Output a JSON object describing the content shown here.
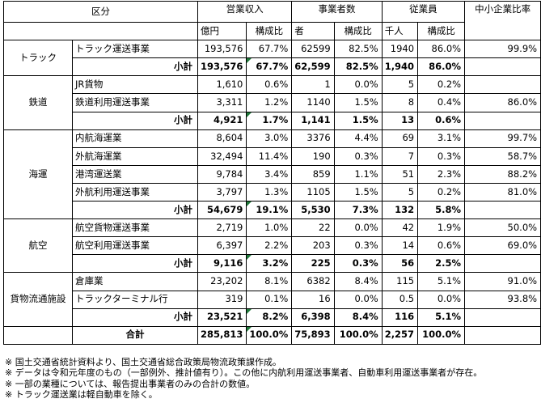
{
  "header": {
    "category": "区分",
    "revenue": "営業収入",
    "businesses": "事業者数",
    "employees": "従業員",
    "sme_ratio": "中小企業比率",
    "unit_revenue": "億円",
    "unit_businesses": "者",
    "unit_employees": "千人",
    "share": "構成比"
  },
  "groups": {
    "truck": {
      "label": "トラック",
      "rows": [
        {
          "name": "トラック運送事業",
          "rev": "193,576",
          "rev_share": "67.7%",
          "biz": "62599",
          "biz_share": "82.5%",
          "emp": "1940",
          "emp_share": "86.0%",
          "sme": "99.9%"
        }
      ],
      "subtotal": {
        "label": "小計",
        "rev": "193,576",
        "rev_share": "67.7%",
        "biz": "62,599",
        "biz_share": "82.5%",
        "emp": "1,940",
        "emp_share": "86.0%",
        "sme": ""
      }
    },
    "rail": {
      "label": "鉄道",
      "rows": [
        {
          "name": "JR貨物",
          "rev": "1,610",
          "rev_share": "0.6%",
          "biz": "1",
          "biz_share": "0.0%",
          "emp": "5",
          "emp_share": "0.2%",
          "sme": ""
        },
        {
          "name": "鉄道利用運送事業",
          "rev": "3,311",
          "rev_share": "1.2%",
          "biz": "1140",
          "biz_share": "1.5%",
          "emp": "8",
          "emp_share": "0.4%",
          "sme": "86.0%"
        }
      ],
      "subtotal": {
        "label": "小計",
        "rev": "4,921",
        "rev_share": "1.7%",
        "biz": "1,141",
        "biz_share": "1.5%",
        "emp": "13",
        "emp_share": "0.6%",
        "sme": ""
      }
    },
    "marine": {
      "label": "海運",
      "rows": [
        {
          "name": "内航海運業",
          "rev": "8,604",
          "rev_share": "3.0%",
          "biz": "3376",
          "biz_share": "4.4%",
          "emp": "69",
          "emp_share": "3.1%",
          "sme": "99.7%"
        },
        {
          "name": "外航海運業",
          "rev": "32,494",
          "rev_share": "11.4%",
          "biz": "190",
          "biz_share": "0.3%",
          "emp": "7",
          "emp_share": "0.3%",
          "sme": "58.7%"
        },
        {
          "name": "港湾運送業",
          "rev": "9,784",
          "rev_share": "3.4%",
          "biz": "859",
          "biz_share": "1.1%",
          "emp": "51",
          "emp_share": "2.3%",
          "sme": "88.2%"
        },
        {
          "name": "外航利用運送事業",
          "rev": "3,797",
          "rev_share": "1.3%",
          "biz": "1105",
          "biz_share": "1.5%",
          "emp": "5",
          "emp_share": "0.2%",
          "sme": "81.0%"
        }
      ],
      "subtotal": {
        "label": "小計",
        "rev": "54,679",
        "rev_share": "19.1%",
        "biz": "5,530",
        "biz_share": "7.3%",
        "emp": "132",
        "emp_share": "5.8%",
        "sme": ""
      }
    },
    "air": {
      "label": "航空",
      "rows": [
        {
          "name": "航空貨物運送事業",
          "rev": "2,719",
          "rev_share": "1.0%",
          "biz": "22",
          "biz_share": "0.0%",
          "emp": "42",
          "emp_share": "1.9%",
          "sme": "50.0%"
        },
        {
          "name": "航空利用運送事業",
          "rev": "6,397",
          "rev_share": "2.2%",
          "biz": "203",
          "biz_share": "0.3%",
          "emp": "14",
          "emp_share": "0.6%",
          "sme": "69.0%"
        }
      ],
      "subtotal": {
        "label": "小計",
        "rev": "9,116",
        "rev_share": "3.2%",
        "biz": "225",
        "biz_share": "0.3%",
        "emp": "56",
        "emp_share": "2.5%",
        "sme": ""
      }
    },
    "logistics": {
      "label": "貨物流通施設",
      "rows": [
        {
          "name": "倉庫業",
          "rev": "23,202",
          "rev_share": "8.1%",
          "biz": "6382",
          "biz_share": "8.4%",
          "emp": "115",
          "emp_share": "5.1%",
          "sme": "91.0%"
        },
        {
          "name": "トラックターミナル行",
          "rev": "319",
          "rev_share": "0.1%",
          "biz": "16",
          "biz_share": "0.0%",
          "emp": "0.5",
          "emp_share": "0.0%",
          "sme": "93.8%"
        }
      ],
      "subtotal": {
        "label": "小計",
        "rev": "23,521",
        "rev_share": "8.2%",
        "biz": "6,398",
        "biz_share": "8.4%",
        "emp": "116",
        "emp_share": "5.1%",
        "sme": ""
      }
    }
  },
  "total": {
    "label": "合計",
    "rev": "285,813",
    "rev_share": "100.0%",
    "biz": "75,893",
    "biz_share": "100.0%",
    "emp": "2,257",
    "emp_share": "100.0%",
    "sme": ""
  },
  "notes": [
    "※ 国土交通省統計資料より、国土交通省総合政策局物流政策課作成。",
    "※ データは令和元年度のもの（一部例外、推計値有り）。この他に内航利用運送事業者、自動車利用運送事業者が存在。",
    "※ 一部の業種については、報告提出事業者のみの合計の数値。",
    "※ トラック運送業は軽自動車を除く。"
  ]
}
